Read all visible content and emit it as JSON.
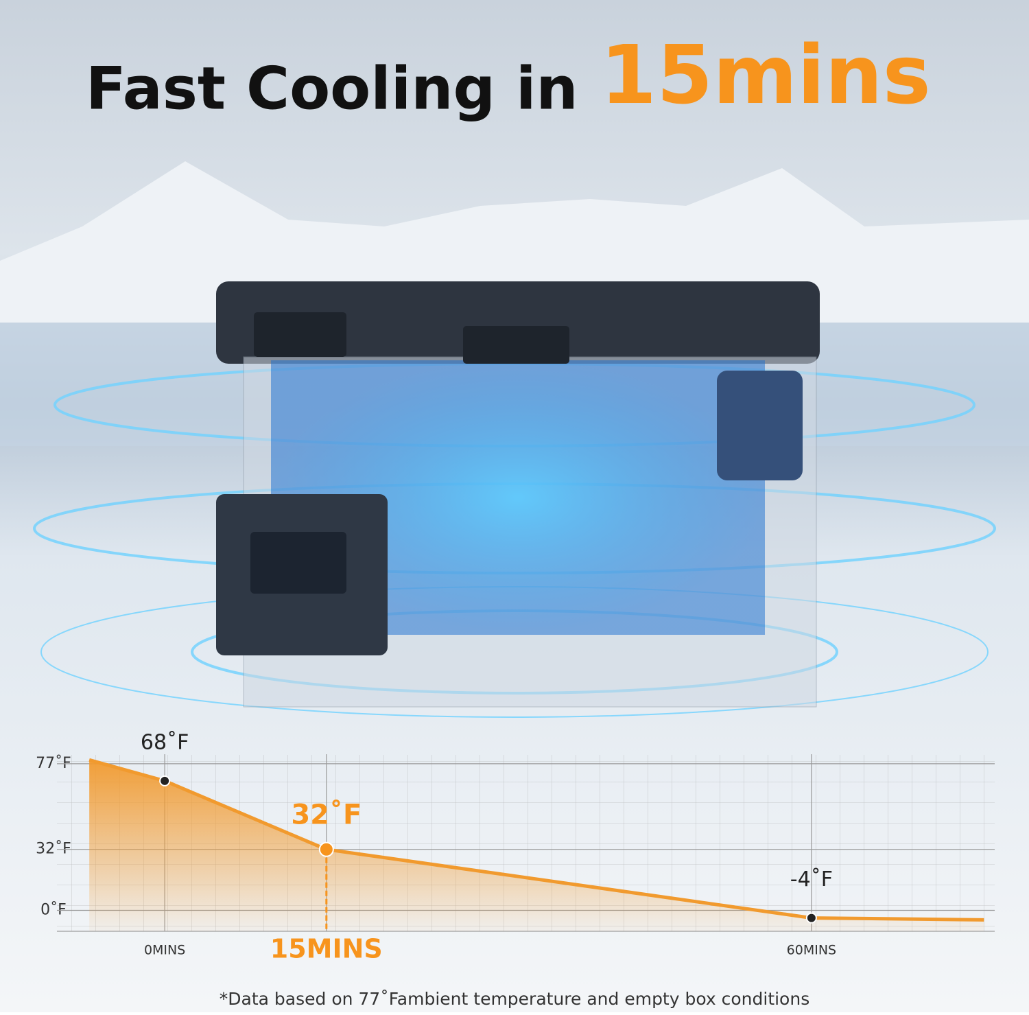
{
  "chart_data": {
    "type": "line",
    "title": "Fast Cooling in",
    "title_highlight": "15mins",
    "x": [
      -7,
      0,
      15,
      60,
      76
    ],
    "values": [
      79,
      68,
      32,
      -4,
      -5
    ],
    "value_labels": [
      null,
      "68˚F",
      "32˚F",
      "-4˚F",
      null
    ],
    "color": "#f19a2e",
    "highlight_color": "#f7941d",
    "highlight_x": 15,
    "xlim": [
      -10,
      77
    ],
    "xticks": [
      {
        "value": 0,
        "label": "0MINS"
      },
      {
        "value": 15,
        "label": "15MINS"
      },
      {
        "value": 60,
        "label": "60MINS"
      }
    ],
    "ylim": [
      -11,
      82
    ],
    "yticks": [
      {
        "value": 77,
        "label": "77˚F"
      },
      {
        "value": 32,
        "label": "32˚F"
      },
      {
        "value": 0,
        "label": "0˚F"
      }
    ],
    "grid": true,
    "footnote": "*Data based on 77˚Fambient temperature and empty box conditions"
  }
}
